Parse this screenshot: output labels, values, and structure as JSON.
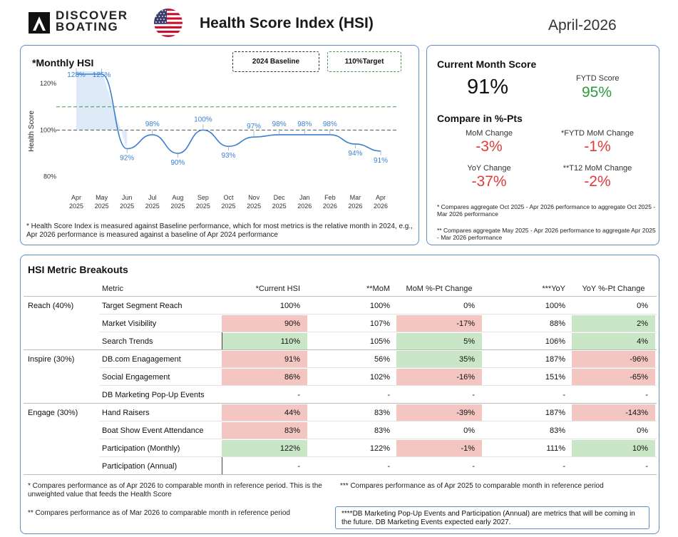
{
  "header": {
    "logo_line1": "DISCOVER",
    "logo_line2": "BOATING",
    "title": "Health Score Index (HSI)",
    "month": "April-2026"
  },
  "colors": {
    "accent_blue": "#5b8ec9",
    "line_blue": "#3b7fd0",
    "target_green": "#3a9a4a",
    "negative_red": "#e03a3a",
    "positive_green": "#2e9a3e",
    "cell_red": "#f3c6c2",
    "cell_green": "#c9e7c6"
  },
  "chart_card": {
    "title": "*Monthly HSI",
    "legend_baseline": "2024 Baseline",
    "legend_target": "110%Target",
    "footnote": "* Health Score Index is measured against Baseline performance, which for most metrics is the relative month in 2024, e.g., Apr 2026 performance is measured against a baseline of Apr 2024 performance"
  },
  "chart_data": {
    "type": "line",
    "ylabel": "Health Score",
    "x_top": [
      "Apr",
      "May",
      "Jun",
      "Jul",
      "Aug",
      "Sep",
      "Oct",
      "Nov",
      "Dec",
      "Jan",
      "Feb",
      "Mar",
      "Apr"
    ],
    "x_bottom": [
      "2025",
      "2025",
      "2025",
      "2025",
      "2025",
      "2025",
      "2025",
      "2025",
      "2025",
      "2026",
      "2026",
      "2026",
      "2026"
    ],
    "values": [
      128,
      125,
      92,
      98,
      90,
      100,
      93,
      97,
      98,
      98,
      98,
      94,
      91
    ],
    "value_labels": [
      "128%",
      "125%",
      "92%",
      "98%",
      "90%",
      "100%",
      "93%",
      "97%",
      "98%",
      "98%",
      "98%",
      "94%",
      "91%"
    ],
    "y_ticks": [
      80,
      100,
      120
    ],
    "y_tick_labels": [
      "80%",
      "100%",
      "120%"
    ],
    "ylim": [
      75,
      124
    ],
    "baseline": 100,
    "target": 110,
    "grid": false
  },
  "score_card": {
    "title": "Current Month Score",
    "current_score": "91%",
    "fytd_label": "FYTD Score",
    "fytd_value": "95%",
    "compare_title": "Compare in %-Pts",
    "mom_label": "MoM Change",
    "mom_value": "-3%",
    "fytd_mom_label": "*FYTD MoM Change",
    "fytd_mom_value": "-1%",
    "yoy_label": "YoY Change",
    "yoy_value": "-37%",
    "t12_label": "**T12 MoM Change",
    "t12_value": "-2%",
    "note1": "* Compares aggregate Oct 2025 - Apr 2026 performance to aggregate Oct 2025 - Mar 2026 performance",
    "note2": "** Compares aggregate May 2025 - Apr 2026 performance to aggregate Apr 2025 - Mar 2026 performance"
  },
  "table": {
    "title": "HSI Metric Breakouts",
    "headers": {
      "metric": "Metric",
      "current": "*Current HSI",
      "mom": "**MoM",
      "mom_change": "MoM %-Pt Change",
      "yoy": "***YoY",
      "yoy_change": "YoY %-Pt Change"
    },
    "rows": [
      {
        "group": "Reach (40%)",
        "metric": "Target Segment Reach",
        "current": "100%",
        "mom": "100%",
        "mom_change": "0%",
        "yoy": "100%",
        "yoy_change": "0%",
        "current_color": "",
        "mom_change_color": "",
        "yoy_change_color": ""
      },
      {
        "group": "",
        "metric": "Market Visibility",
        "current": "90%",
        "mom": "107%",
        "mom_change": "-17%",
        "yoy": "88%",
        "yoy_change": "2%",
        "current_color": "red",
        "mom_change_color": "red",
        "yoy_change_color": "green"
      },
      {
        "group": "",
        "metric": "Search Trends",
        "current": "110%",
        "mom": "105%",
        "mom_change": "5%",
        "yoy": "106%",
        "yoy_change": "4%",
        "current_color": "green",
        "mom_change_color": "green",
        "yoy_change_color": "green"
      },
      {
        "group": "Inspire (30%)",
        "metric": "DB.com Enagagement",
        "current": "91%",
        "mom": "56%",
        "mom_change": "35%",
        "yoy": "187%",
        "yoy_change": "-96%",
        "current_color": "red",
        "mom_change_color": "green",
        "yoy_change_color": "red"
      },
      {
        "group": "",
        "metric": "Social Engagement",
        "current": "86%",
        "mom": "102%",
        "mom_change": "-16%",
        "yoy": "151%",
        "yoy_change": "-65%",
        "current_color": "red",
        "mom_change_color": "red",
        "yoy_change_color": "red"
      },
      {
        "group": "",
        "metric": "DB Marketing Pop-Up Events",
        "current": "-",
        "mom": "-",
        "mom_change": "-",
        "yoy": "-",
        "yoy_change": "-",
        "current_color": "",
        "mom_change_color": "",
        "yoy_change_color": ""
      },
      {
        "group": "Engage (30%)",
        "metric": "Hand Raisers",
        "current": "44%",
        "mom": "83%",
        "mom_change": "-39%",
        "yoy": "187%",
        "yoy_change": "-143%",
        "current_color": "red",
        "mom_change_color": "red",
        "yoy_change_color": "red"
      },
      {
        "group": "",
        "metric": "Boat Show Event Attendance",
        "current": "83%",
        "mom": "83%",
        "mom_change": "0%",
        "yoy": "83%",
        "yoy_change": "0%",
        "current_color": "red",
        "mom_change_color": "",
        "yoy_change_color": ""
      },
      {
        "group": "",
        "metric": "Participation (Monthly)",
        "current": "122%",
        "mom": "122%",
        "mom_change": "-1%",
        "yoy": "111%",
        "yoy_change": "10%",
        "current_color": "green",
        "mom_change_color": "red",
        "yoy_change_color": "green"
      },
      {
        "group": "",
        "metric": "Participation (Annual)",
        "current": "-",
        "mom": "-",
        "mom_change": "-",
        "yoy": "-",
        "yoy_change": "-",
        "current_color": "",
        "mom_change_color": "",
        "yoy_change_color": ""
      }
    ],
    "foot1": "* Compares performance as of Apr 2026 to comparable month in reference period. This is the unweighted value that feeds the Health Score",
    "foot2": "*** Compares performance as of Apr 2025 to comparable month in reference period",
    "foot3": "** Compares performance as of Mar 2026 to comparable month in reference period",
    "foot4": "****DB Marketing Pop-Up Events and Participation (Annual) are metrics that will be coming in the future. DB Marketing Events expected early 2027."
  }
}
